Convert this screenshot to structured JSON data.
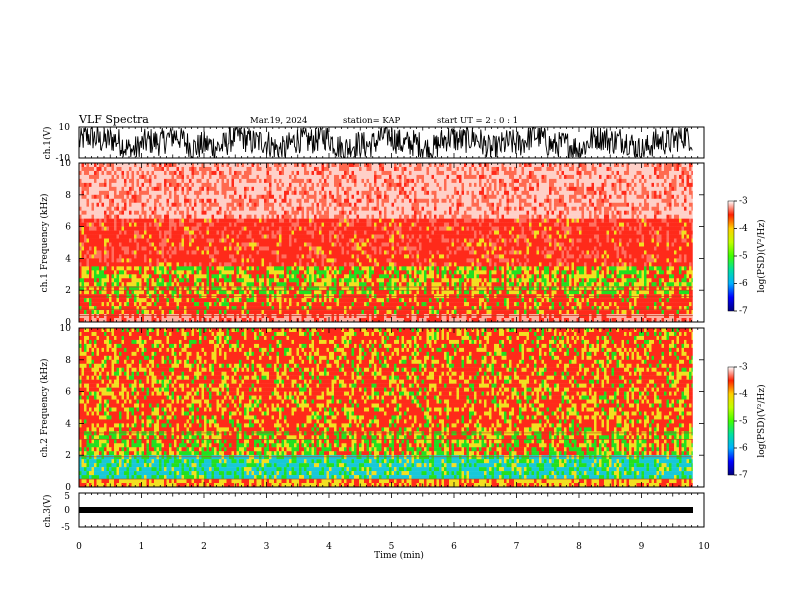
{
  "header": {
    "title": "VLF Spectra",
    "date": "Mar.19, 2024",
    "station": "station= KAP",
    "start_ut": "start  UT =   2  : 0   : 1"
  },
  "colors": {
    "spectrogram_high": "#ff2a1a",
    "spectrogram_mid": "#f2e020",
    "spectrogram_low": "#22e020",
    "spectrogram_lowest": "#18c8d8",
    "colorbar": [
      "#000080",
      "#0000ff",
      "#00b0ff",
      "#00e0a0",
      "#40ff00",
      "#c0ff00",
      "#ffd000",
      "#ff2000",
      "#ffffff"
    ]
  },
  "chart_data": [
    {
      "type": "line",
      "name": "ch1-waveform",
      "ylabel": "ch.1(V)",
      "ylim": [
        -10,
        10
      ],
      "ytick_labels": [
        "10",
        "-10"
      ],
      "xlim": [
        0,
        10
      ]
    },
    {
      "type": "heatmap",
      "name": "ch1-spectrogram",
      "ylabel": "ch.1\nFrequency (kHz)",
      "ylim": [
        0,
        10
      ],
      "ytick_labels": [
        "10",
        "8",
        "6",
        "4",
        "2",
        "0"
      ],
      "xlim": [
        0,
        10
      ],
      "colorbar": {
        "label": "log(PSD)(V²/Hz)",
        "range": [
          -7,
          -3
        ],
        "tick_labels": [
          "-3",
          "-4",
          "-5",
          "-6",
          "-7"
        ]
      }
    },
    {
      "type": "heatmap",
      "name": "ch2-spectrogram",
      "ylabel": "ch.2\nFrequency (kHz)",
      "ylim": [
        0,
        10
      ],
      "ytick_labels": [
        "10",
        "8",
        "6",
        "4",
        "2",
        "0"
      ],
      "xlim": [
        0,
        10
      ],
      "colorbar": {
        "label": "log(PSD)(V²/Hz)",
        "range": [
          -7,
          -3
        ],
        "tick_labels": [
          "-3",
          "-4",
          "-5",
          "-6",
          "-7"
        ]
      }
    },
    {
      "type": "line",
      "name": "ch3-waveform",
      "ylabel": "ch.3(V)",
      "ylim": [
        -5,
        5
      ],
      "ytick_labels": [
        "5",
        "0",
        "-5"
      ],
      "xlabel": "Time  (min)",
      "xlim": [
        0,
        10
      ],
      "xtick_labels": [
        "0",
        "1",
        "2",
        "3",
        "4",
        "5",
        "6",
        "7",
        "8",
        "9",
        "10"
      ]
    }
  ]
}
